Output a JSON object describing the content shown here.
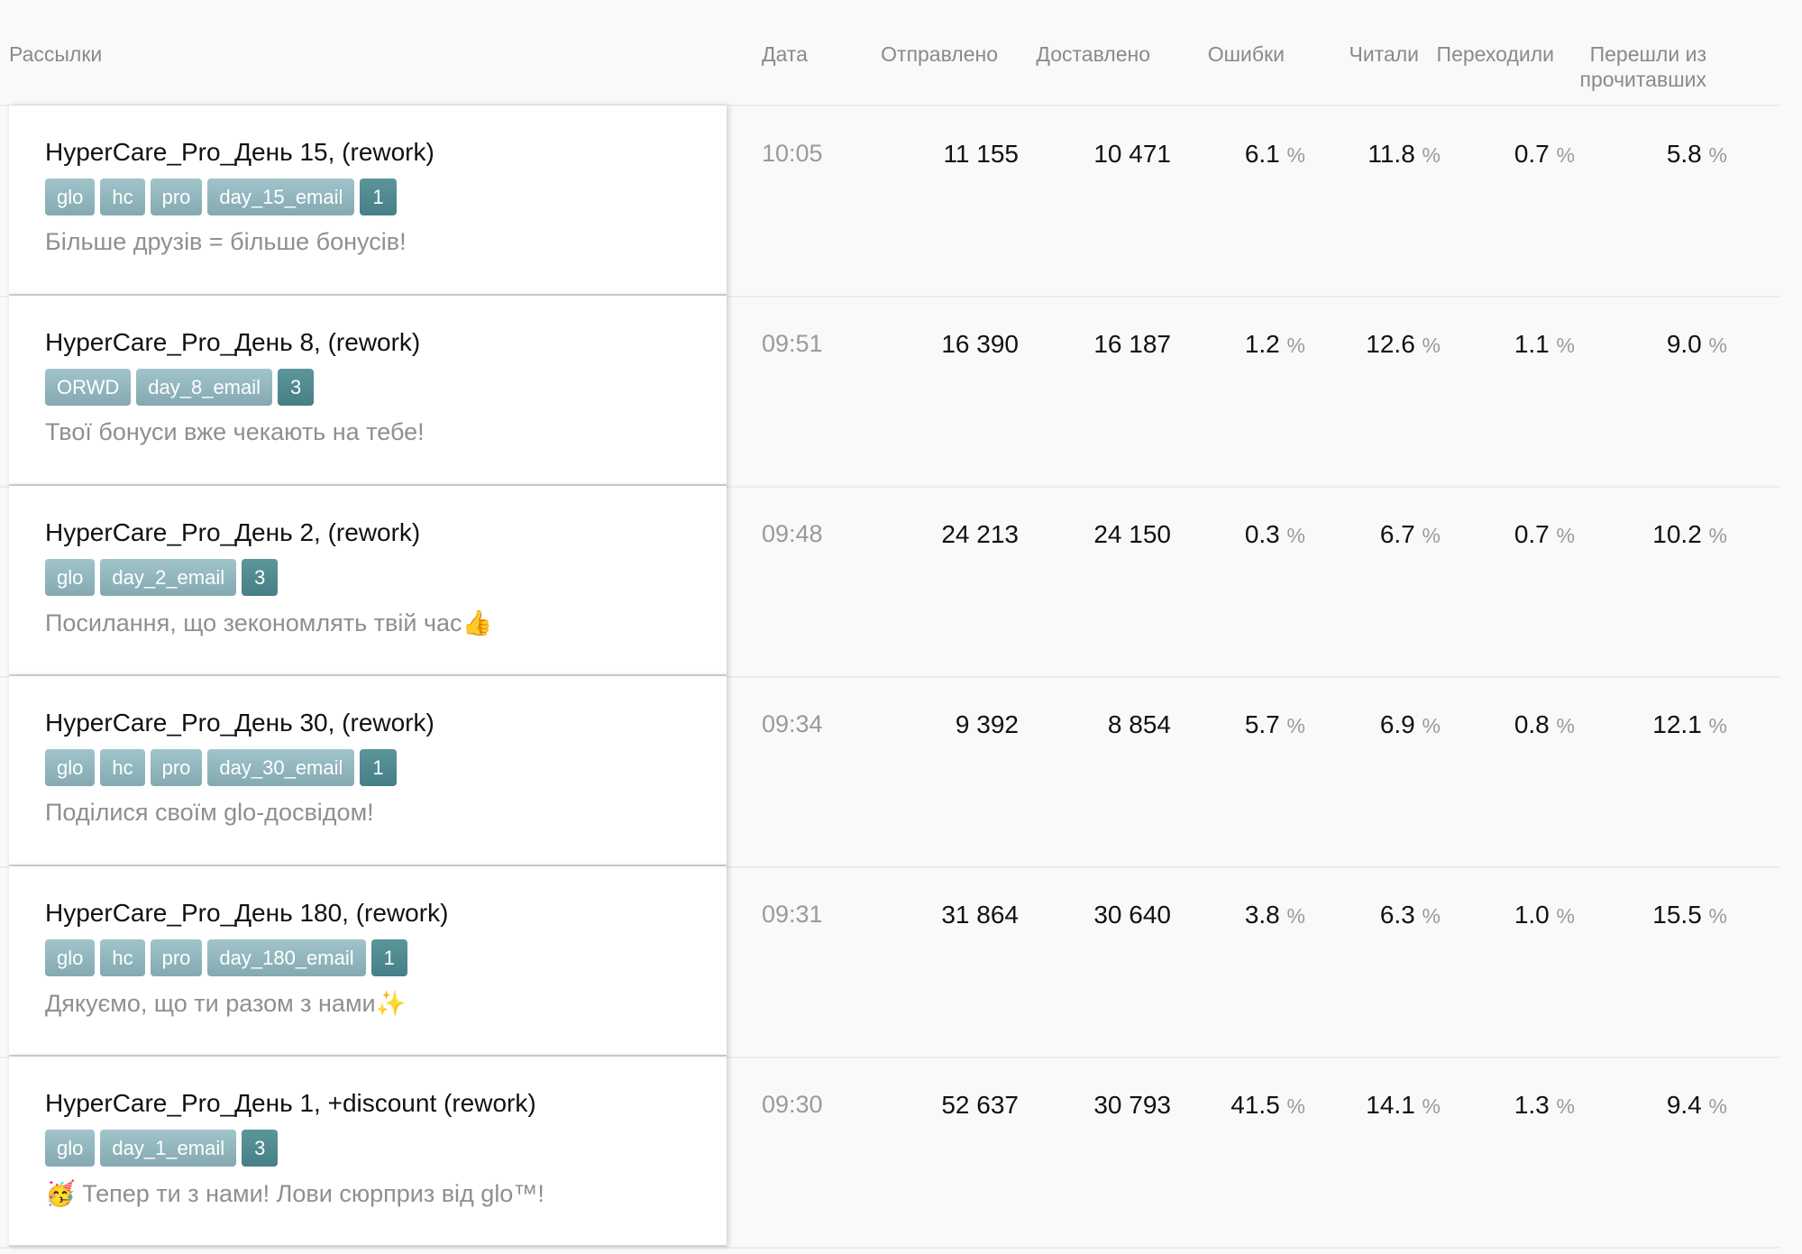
{
  "header": {
    "mailings": "Рассылки",
    "date": "Дата",
    "sent": "Отправлено",
    "delivered": "Доставлено",
    "errors": "Ошибки",
    "read": "Читали",
    "clicked": "Переходили",
    "clicked_of_read_1": "Перешли из",
    "clicked_of_read_2": "прочитавших"
  },
  "percent_sign": "%",
  "colors": {
    "tag": "#93b7be",
    "tag_count": "#4f8a90"
  },
  "rows": [
    {
      "title": "HyperCare_Pro_День 15, (rework)",
      "tags": [
        "glo",
        "hc",
        "pro",
        "day_15_email"
      ],
      "count": "1",
      "subject": "Більше друзів = більше бонусів!",
      "time": "10:05",
      "sent": "11 155",
      "delivered": "10 471",
      "errors": "6.1",
      "read": "11.8",
      "clicked": "0.7",
      "clicked_of_read": "5.8"
    },
    {
      "title": "HyperCare_Pro_День 8, (rework)",
      "tags": [
        "ORWD",
        "day_8_email"
      ],
      "count": "3",
      "subject": "Твої бонуси вже чекають на тебе!",
      "time": "09:51",
      "sent": "16 390",
      "delivered": "16 187",
      "errors": "1.2",
      "read": "12.6",
      "clicked": "1.1",
      "clicked_of_read": "9.0"
    },
    {
      "title": "HyperCare_Pro_День 2, (rework)",
      "tags": [
        "glo",
        "day_2_email"
      ],
      "count": "3",
      "subject": "Посилання, що зекономлять твій час👍",
      "time": "09:48",
      "sent": "24 213",
      "delivered": "24 150",
      "errors": "0.3",
      "read": "6.7",
      "clicked": "0.7",
      "clicked_of_read": "10.2"
    },
    {
      "title": "HyperCare_Pro_День 30, (rework)",
      "tags": [
        "glo",
        "hc",
        "pro",
        "day_30_email"
      ],
      "count": "1",
      "subject": "Поділися своїм glo-досвідом!",
      "time": "09:34",
      "sent": "9 392",
      "delivered": "8 854",
      "errors": "5.7",
      "read": "6.9",
      "clicked": "0.8",
      "clicked_of_read": "12.1"
    },
    {
      "title": "HyperCare_Pro_День 180, (rework)",
      "tags": [
        "glo",
        "hc",
        "pro",
        "day_180_email"
      ],
      "count": "1",
      "subject": "Дякуємо, що ти разом з нами✨",
      "time": "09:31",
      "sent": "31 864",
      "delivered": "30 640",
      "errors": "3.8",
      "read": "6.3",
      "clicked": "1.0",
      "clicked_of_read": "15.5"
    },
    {
      "title": "HyperCare_Pro_День 1, +discount (rework)",
      "tags": [
        "glo",
        "day_1_email"
      ],
      "count": "3",
      "subject": "🥳 Тепер ти з нами! Лови сюрприз від glo™!",
      "time": "09:30",
      "sent": "52 637",
      "delivered": "30 793",
      "errors": "41.5",
      "read": "14.1",
      "clicked": "1.3",
      "clicked_of_read": "9.4"
    }
  ]
}
